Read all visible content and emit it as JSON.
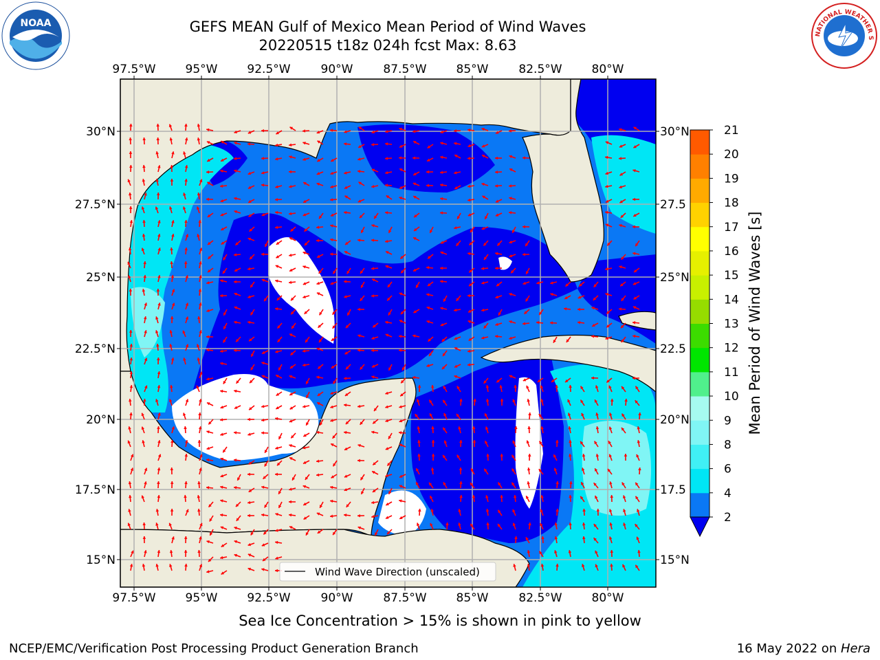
{
  "header": {
    "title_line1": "GEFS MEAN Gulf of Mexico Mean Period of Wind Waves",
    "title_line2": "20220515 t18z 024h fcst   Max: 8.63"
  },
  "map": {
    "lon_labels": [
      "97.5°W",
      "95°W",
      "92.5°W",
      "90°W",
      "87.5°W",
      "85°W",
      "82.5°W",
      "80°W"
    ],
    "lat_labels_left": [
      "30°N",
      "27.5°N",
      "25°N",
      "22.5°N",
      "20°N",
      "17.5°N",
      "15°N"
    ],
    "lat_labels_right": [
      "30°N",
      "27.5",
      "25°N",
      "22.5",
      "20°N",
      "17.5",
      "15°N"
    ],
    "legend_label": "Wind Wave Direction (unscaled)",
    "colors": {
      "land": "#eeecdc",
      "arrow": "#ff0000",
      "grid": "#b0b0b0"
    }
  },
  "colorbar": {
    "title": "Mean Period of Wind Waves [s]",
    "ticks": [
      "2",
      "4",
      "6",
      "8",
      "9",
      "10",
      "11",
      "12",
      "13",
      "14",
      "15",
      "16",
      "17",
      "18",
      "19",
      "20",
      "21"
    ],
    "colors": [
      "#0a78f5",
      "#00e6f5",
      "#40f0f5",
      "#80f5f5",
      "#a6faf0",
      "#50f08c",
      "#00e600",
      "#3cdc00",
      "#96dc00",
      "#c8f000",
      "#e6f000",
      "#ffff00",
      "#ffd200",
      "#ffaa00",
      "#ff8000",
      "#ff5a00",
      "#ff2800",
      "#ff0000"
    ]
  },
  "caption": "Sea Ice Concentration > 15% is shown in pink to yellow",
  "footer": {
    "left": "NCEP/EMC/Verification Post Processing Product Generation Branch",
    "right_prefix": "16 May 2022 on ",
    "right_host": "Hera"
  },
  "logos": {
    "noaa_text": "NOAA",
    "nws_text": "NATIONAL WEATHER SERVICE"
  }
}
